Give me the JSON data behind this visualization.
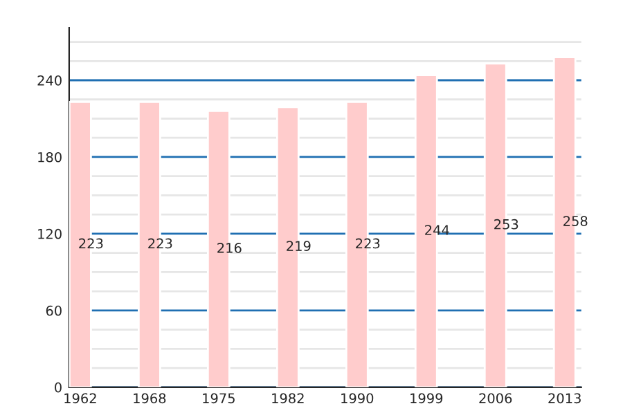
{
  "chart_data": {
    "type": "bar",
    "categories": [
      "1962",
      "1968",
      "1975",
      "1982",
      "1990",
      "1999",
      "2006",
      "2013"
    ],
    "values": [
      223,
      223,
      216,
      219,
      223,
      244,
      253,
      258
    ],
    "color": "#ffcccc",
    "ylim": [
      0,
      281
    ],
    "yticks": [
      0,
      60,
      120,
      180,
      240
    ],
    "grid": "y",
    "data_labels": true
  }
}
